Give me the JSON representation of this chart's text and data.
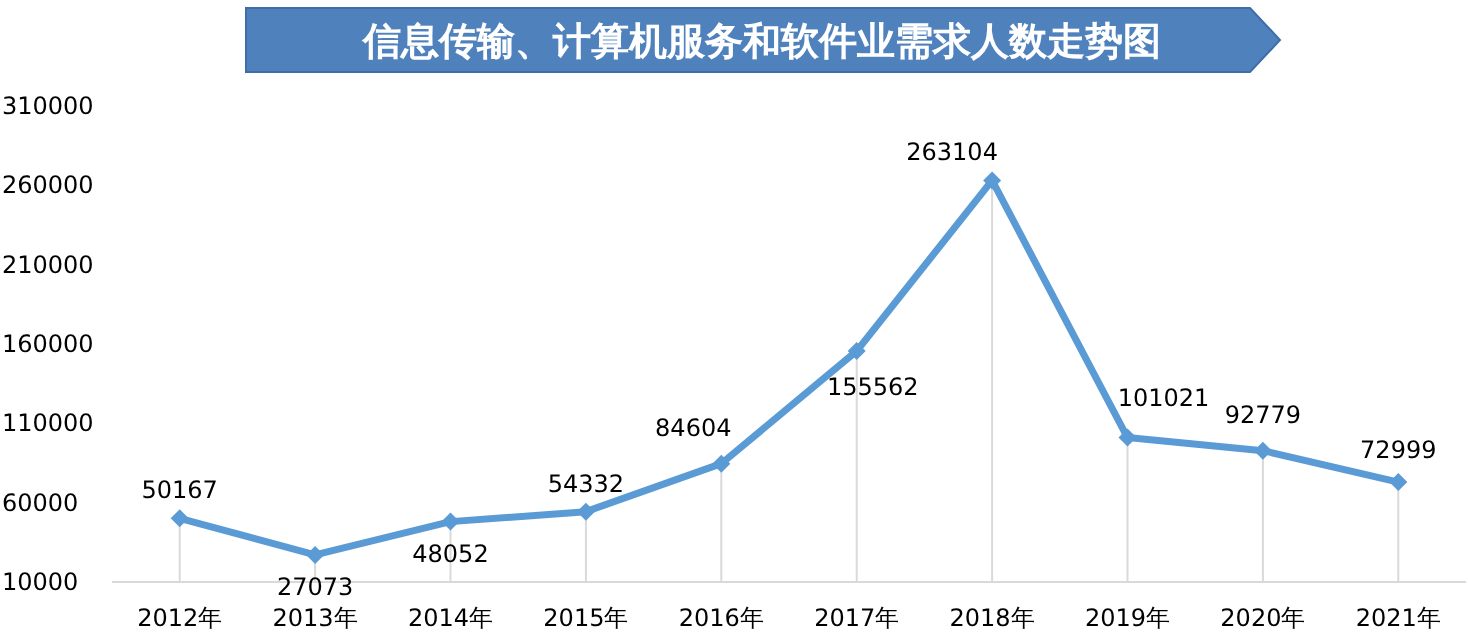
{
  "chart_data": {
    "type": "line",
    "title": "信息传输、计算机服务和软件业需求人数走势图",
    "categories": [
      "2012年",
      "2013年",
      "2014年",
      "2015年",
      "2016年",
      "2017年",
      "2018年",
      "2019年",
      "2020年",
      "2021年"
    ],
    "series": [
      {
        "color": "#5b9bd5",
        "values": [
          50167,
          27073,
          48052,
          54332,
          84604,
          155562,
          263104,
          101021,
          92779,
          72999
        ]
      }
    ],
    "ylim": [
      10000,
      310000
    ],
    "yticks": [
      10000,
      60000,
      110000,
      160000,
      210000,
      260000,
      310000
    ],
    "grid": "x",
    "marker": "diamond",
    "line_style": "solid",
    "data_labels": true
  }
}
